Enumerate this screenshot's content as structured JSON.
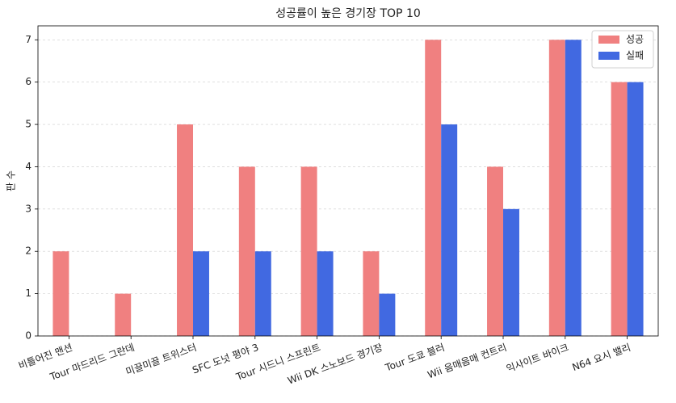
{
  "chart_data": {
    "type": "bar",
    "title": "성공률이 높은 경기장 TOP 10",
    "y_label": "판 수",
    "categories": [
      "비틀어진 맨션",
      "Tour 마드리드 그란데",
      "미끌미끌 트위스터",
      "SFC 도넛 평야 3",
      "Tour 시드니 스프린트",
      "Wii DK 스노보드 경기장",
      "Tour 도쿄 블러",
      "Wii 음매음매 컨트리",
      "익사이트 바이크",
      "N64 요시 밸리"
    ],
    "series": [
      {
        "name": "성공",
        "color": "#f08080",
        "values": [
          2,
          1,
          5,
          4,
          4,
          2,
          7,
          4,
          7,
          6
        ]
      },
      {
        "name": "실패",
        "color": "#4169e1",
        "values": [
          0,
          0,
          2,
          2,
          2,
          1,
          5,
          3,
          7,
          6
        ]
      }
    ],
    "ylim": [
      0,
      7.33
    ],
    "yticks": [
      0,
      1,
      2,
      3,
      4,
      5,
      6,
      7
    ],
    "grid": true,
    "legend": "upper right"
  }
}
